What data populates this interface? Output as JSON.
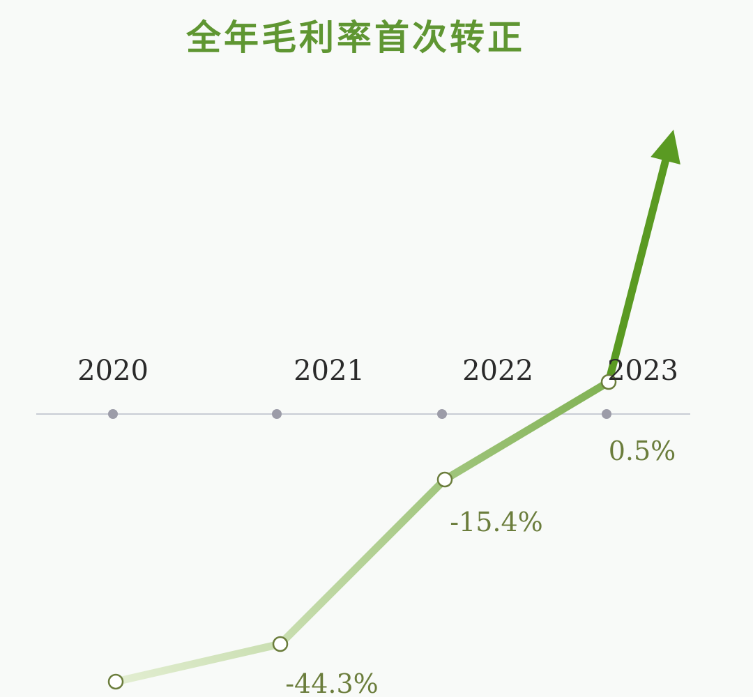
{
  "title": "全年毛利率首次转正",
  "colors": {
    "title": "#5f9632",
    "line_start": "#e3eed2",
    "line_end": "#5a9a22",
    "axis": "#b8bcc8",
    "axis_dot": "#9c9ca8",
    "year_text": "#2a2a2a",
    "value_text": "#6b7d3c",
    "marker_fill": "#ffffff",
    "marker_stroke": "#6b7d3c"
  },
  "chart_data": {
    "type": "line",
    "title": "全年毛利率首次转正",
    "categories": [
      "2020",
      "2021",
      "2022",
      "2023"
    ],
    "series": [
      {
        "name": "",
        "values": [
          null,
          -44.3,
          -15.4,
          0.5
        ]
      }
    ],
    "value_labels": [
      "",
      "-44.3%",
      "-15.4%",
      "0.5%"
    ],
    "trend_arrow": "up",
    "xlabel": "",
    "ylabel": "",
    "grid": false,
    "legend": "none"
  }
}
